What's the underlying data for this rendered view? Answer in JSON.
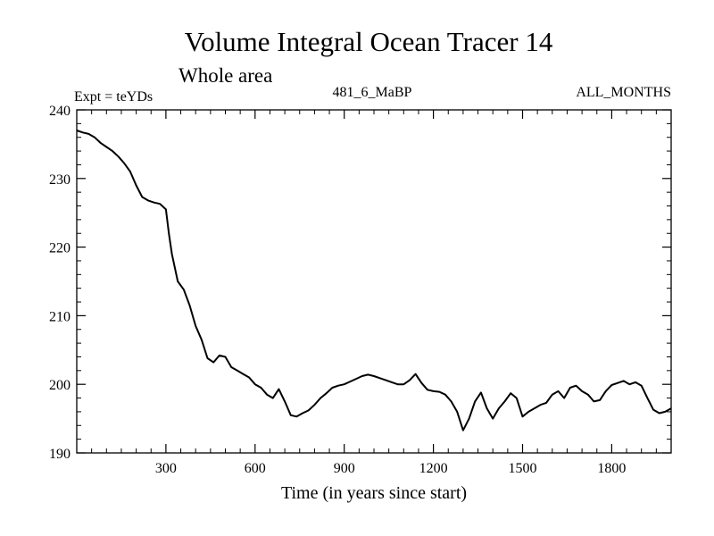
{
  "chart_data": {
    "type": "line",
    "title": "Volume Integral Ocean Tracer 14",
    "subtitle": "Whole area",
    "experiment_label": "Expt = teYDs",
    "run_label": "481_6_MaBP",
    "period_label": "ALL_MONTHS",
    "xlabel": "Time (in years since start)",
    "ylabel": "",
    "xlim": [
      0,
      2000
    ],
    "ylim": [
      190,
      240
    ],
    "x_ticks": [
      300,
      600,
      900,
      1200,
      1500,
      1800
    ],
    "y_ticks": [
      190,
      200,
      210,
      220,
      230,
      240
    ],
    "grid": false,
    "series": [
      {
        "name": "Tracer 14",
        "color": "#000000",
        "x": [
          0,
          20,
          40,
          60,
          80,
          100,
          120,
          140,
          160,
          180,
          200,
          220,
          240,
          260,
          280,
          300,
          310,
          320,
          340,
          360,
          380,
          400,
          420,
          440,
          460,
          480,
          500,
          520,
          540,
          560,
          580,
          600,
          620,
          640,
          660,
          680,
          700,
          720,
          740,
          760,
          780,
          800,
          820,
          840,
          860,
          880,
          900,
          920,
          940,
          960,
          980,
          1000,
          1020,
          1040,
          1060,
          1080,
          1100,
          1120,
          1140,
          1160,
          1180,
          1200,
          1220,
          1240,
          1260,
          1280,
          1300,
          1320,
          1340,
          1360,
          1380,
          1400,
          1420,
          1440,
          1460,
          1480,
          1500,
          1520,
          1540,
          1560,
          1580,
          1600,
          1620,
          1640,
          1660,
          1680,
          1700,
          1720,
          1740,
          1760,
          1780,
          1800,
          1820,
          1840,
          1860,
          1880,
          1900,
          1920,
          1940,
          1960,
          1980,
          2000
        ],
        "y": [
          237.0,
          236.7,
          236.5,
          236.0,
          235.2,
          234.6,
          234.0,
          233.2,
          232.2,
          231.0,
          229.0,
          227.3,
          226.8,
          226.5,
          226.3,
          225.5,
          222.0,
          219.0,
          215.0,
          213.8,
          211.5,
          208.5,
          206.5,
          203.8,
          203.2,
          204.2,
          204.0,
          202.5,
          202.0,
          201.5,
          201.0,
          200.0,
          199.5,
          198.5,
          198.0,
          199.3,
          197.5,
          195.5,
          195.3,
          195.8,
          196.2,
          197.0,
          198.0,
          198.7,
          199.5,
          199.8,
          200.0,
          200.4,
          200.8,
          201.2,
          201.4,
          201.2,
          200.9,
          200.6,
          200.3,
          200.0,
          200.0,
          200.6,
          201.5,
          200.2,
          199.2,
          199.0,
          198.9,
          198.5,
          197.5,
          196.0,
          193.3,
          195.0,
          197.5,
          198.8,
          196.5,
          195.0,
          196.5,
          197.5,
          198.7,
          198.0,
          195.3,
          196.0,
          196.5,
          197.0,
          197.3,
          198.5,
          199.0,
          198.0,
          199.5,
          199.8,
          199.0,
          198.5,
          197.5,
          197.7,
          199.0,
          199.9,
          200.2,
          200.5,
          200.0,
          200.3,
          199.8,
          198.0,
          196.3,
          195.8,
          196.0,
          196.5
        ]
      }
    ]
  }
}
